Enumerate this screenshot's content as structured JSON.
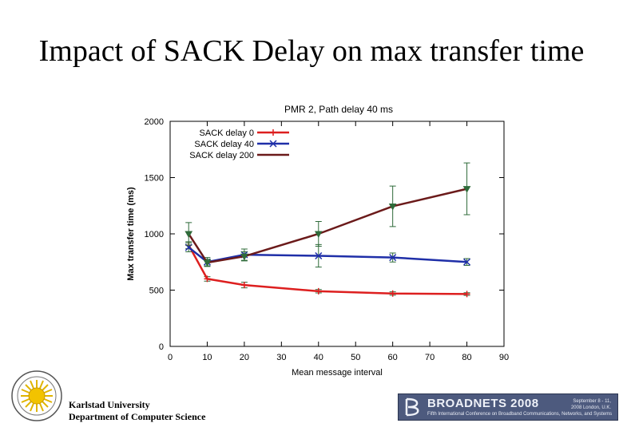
{
  "slide": {
    "title": "Impact of SACK Delay on max transfer time"
  },
  "chart_data": {
    "type": "line",
    "title": "PMR 2, Path delay 40 ms",
    "xlabel": "Mean message interval",
    "ylabel": "Max transfer time (ms)",
    "xlim": [
      0,
      90
    ],
    "ylim": [
      0,
      2000
    ],
    "xticks": [
      0,
      10,
      20,
      30,
      40,
      50,
      60,
      70,
      80,
      90
    ],
    "yticks": [
      0,
      500,
      1000,
      1500,
      2000
    ],
    "legend_position": "top-left",
    "series": [
      {
        "name": "SACK delay 0",
        "color": "#dd1f1f",
        "marker": "plus",
        "x": [
          5,
          10,
          20,
          40,
          60,
          80
        ],
        "y": [
          900,
          600,
          545,
          490,
          470,
          465
        ],
        "err": [
          30,
          20,
          25,
          15,
          15,
          12
        ]
      },
      {
        "name": "SACK delay 40",
        "color": "#1f2fa8",
        "marker": "x",
        "x": [
          5,
          10,
          20,
          40,
          60,
          80
        ],
        "y": [
          880,
          750,
          815,
          805,
          790,
          750
        ],
        "err": [
          40,
          40,
          50,
          100,
          40,
          30
        ]
      },
      {
        "name": "SACK delay 200",
        "color": "#6b1a1a",
        "marker": "triangle",
        "x": [
          5,
          10,
          20,
          40,
          60,
          80
        ],
        "y": [
          1000,
          745,
          800,
          1000,
          1245,
          1400
        ],
        "err": [
          100,
          30,
          40,
          110,
          180,
          230
        ]
      }
    ]
  },
  "footer": {
    "university": "Karlstad University",
    "department": "Department of Computer Science"
  },
  "banner": {
    "name": "BROADNETS 2008",
    "subtitle": "Fifth International Conference on Broadband Communications, Networks, and Systems",
    "date": "September 8 - 11, 2008 London, U.K.",
    "background": "#4d5a7e"
  }
}
